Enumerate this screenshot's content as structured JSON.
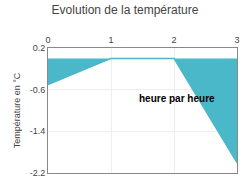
{
  "chart_data": {
    "type": "area",
    "title": "Evolution de la température",
    "y_label": "Température en °C",
    "annotation": "heure par heure",
    "x": [
      0,
      1,
      2,
      3
    ],
    "values": [
      -0.5,
      0.0,
      0.0,
      -2.0
    ],
    "color": "#4ab8c8",
    "xlim": [
      0,
      3
    ],
    "xticks": [
      0,
      1,
      2,
      3
    ],
    "ylim": [
      -2.2,
      0.2
    ],
    "yticks": [
      0.2,
      -0.6,
      -1.4,
      -2.2
    ],
    "grid": true
  }
}
